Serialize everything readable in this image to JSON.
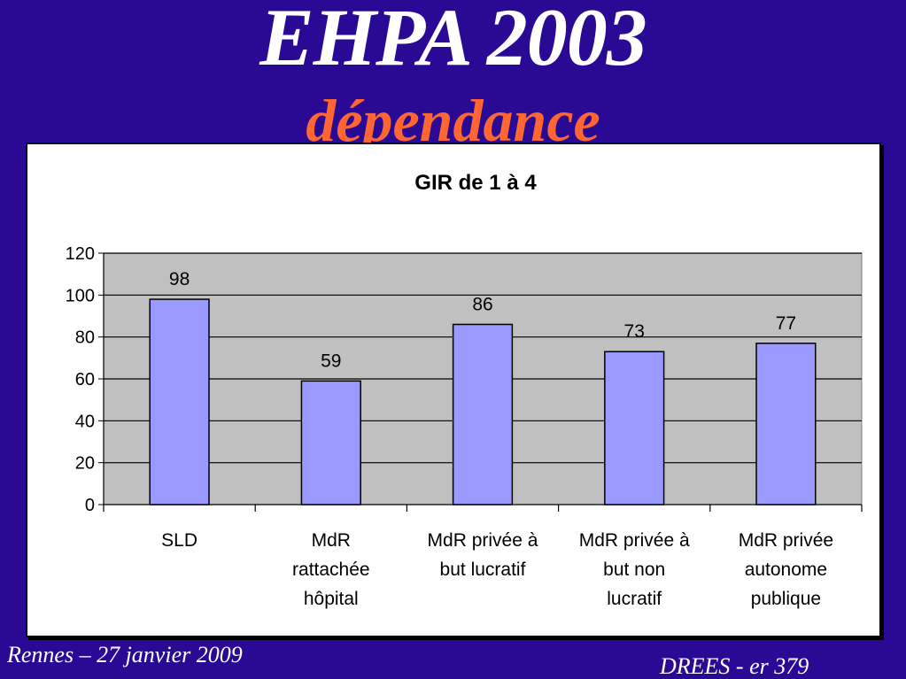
{
  "slide": {
    "title": "EHPA 2003",
    "subtitle": "dépendance",
    "footer_left": "Rennes – 27 janvier 2009",
    "footer_right": "DREES - er 379"
  },
  "colors": {
    "background": "#2a0a95",
    "title": "#ffffff",
    "subtitle": "#ff6633",
    "plot_area": "#c0c0c0",
    "bar_fill": "#9999ff",
    "bar_stroke": "#000000"
  },
  "chart_data": {
    "type": "bar",
    "title": "GIR de 1 à 4",
    "xlabel": "",
    "ylabel": "",
    "categories": [
      [
        "SLD"
      ],
      [
        "MdR",
        "rattachée",
        "hôpital"
      ],
      [
        "MdR privée à",
        "but lucratif"
      ],
      [
        "MdR privée à",
        "but non",
        "lucratif"
      ],
      [
        "MdR privée",
        "autonome",
        "publique"
      ]
    ],
    "values": [
      98,
      59,
      86,
      73,
      77
    ],
    "data_labels": [
      "98",
      "59",
      "86",
      "73",
      "77"
    ],
    "ylim": [
      0,
      120
    ],
    "yticks": [
      0,
      20,
      40,
      60,
      80,
      100,
      120
    ],
    "grid": true,
    "legend": "none"
  }
}
